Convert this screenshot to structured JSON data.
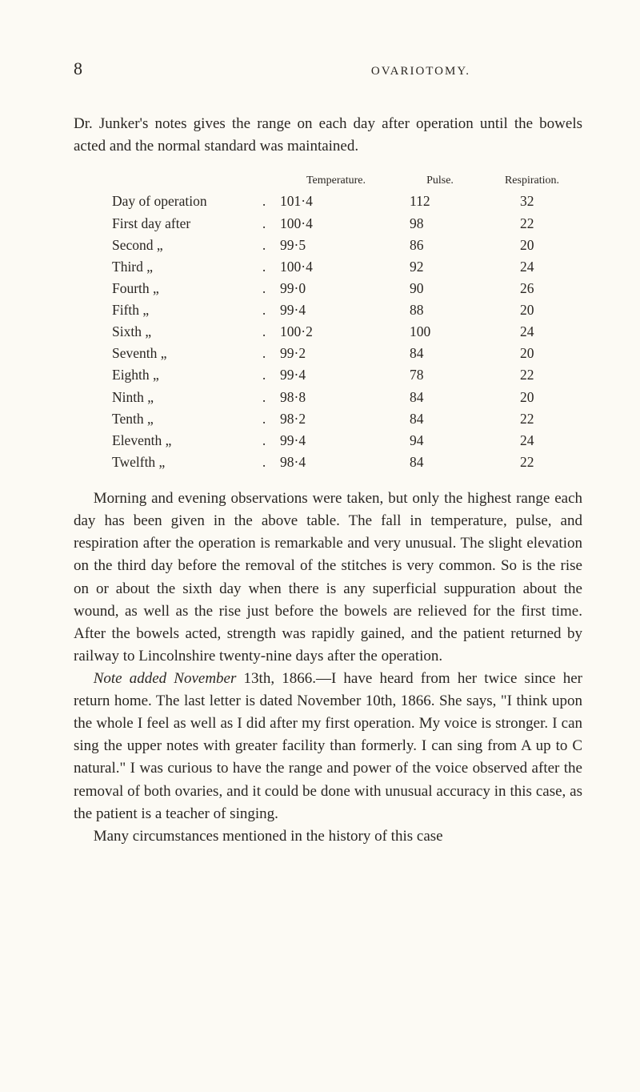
{
  "page_number": "8",
  "running_head": "OVARIOTOMY.",
  "intro_para": "Dr. Junker's notes gives the range on each day after operation until the bowels acted and the normal standard was maintained.",
  "table": {
    "headers": {
      "label": "",
      "temp": "Temperature.",
      "pulse": "Pulse.",
      "resp": "Respiration."
    },
    "label_fontsize": 14,
    "value_fontsize": 17.5,
    "col_widths": {
      "label": 170,
      "dot": 40,
      "temp": 140,
      "pulse": 120,
      "resp": 110
    },
    "text_color": "#2a2622",
    "rows": [
      {
        "label": "Day of operation",
        "temp": "101·4",
        "pulse": "112",
        "resp": "32"
      },
      {
        "label": "First day after",
        "temp": "100·4",
        "pulse": "98",
        "resp": "22"
      },
      {
        "label": "Second   „",
        "temp": "99·5",
        "pulse": "86",
        "resp": "20"
      },
      {
        "label": "Third      „",
        "temp": "100·4",
        "pulse": "92",
        "resp": "24"
      },
      {
        "label": "Fourth   „",
        "temp": "99·0",
        "pulse": "90",
        "resp": "26"
      },
      {
        "label": "Fifth      „",
        "temp": "99·4",
        "pulse": "88",
        "resp": "20"
      },
      {
        "label": "Sixth      „",
        "temp": "100·2",
        "pulse": "100",
        "resp": "24"
      },
      {
        "label": "Seventh „",
        "temp": "99·2",
        "pulse": "84",
        "resp": "20"
      },
      {
        "label": "Eighth   „",
        "temp": "99·4",
        "pulse": "78",
        "resp": "22"
      },
      {
        "label": "Ninth     „",
        "temp": "98·8",
        "pulse": "84",
        "resp": "20"
      },
      {
        "label": "Tenth     „",
        "temp": "98·2",
        "pulse": "84",
        "resp": "22"
      },
      {
        "label": "Eleventh „",
        "temp": "99·4",
        "pulse": "94",
        "resp": "24"
      },
      {
        "label": "Twelfth  „",
        "temp": "98·4",
        "pulse": "84",
        "resp": "22"
      }
    ]
  },
  "morning_para": "Morning and evening observations were taken, but only the highest range each day has been given in the above table. The fall in temperature, pulse, and respiration after the operation is remarkable and very unusual. The slight elevation on the third day before the removal of the stitches is very common. So is the rise on or about the sixth day when there is any superficial suppuration about the wound, as well as the rise just before the bowels are relieved for the first time. After the bowels acted, strength was rapidly gained, and the patient returned by railway to Lincolnshire twenty-nine days after the operation.",
  "note_lead_italic": "Note added November",
  "note_lead_rest": " 13th, 1866.—I have heard from her twice since her return home. The last letter is dated November 10th, 1866. She says, \"I think upon the whole I feel as well as I did after my first operation. My voice is stronger. I can sing the upper notes with greater facility than formerly. I can sing from A up to C natural.\" I was curious to have the range and power of the voice observed after the removal of both ovaries, and it could be done with unusual accuracy in this case, as the patient is a teacher of singing.",
  "final_para": "Many circumstances mentioned in the history of this case",
  "colors": {
    "background": "#fcfaf4",
    "text": "#2a2622"
  },
  "typography": {
    "body_fontsize": 19,
    "body_line_height": 1.48,
    "header_small_fontsize": 15,
    "page_number_fontsize": 22
  }
}
